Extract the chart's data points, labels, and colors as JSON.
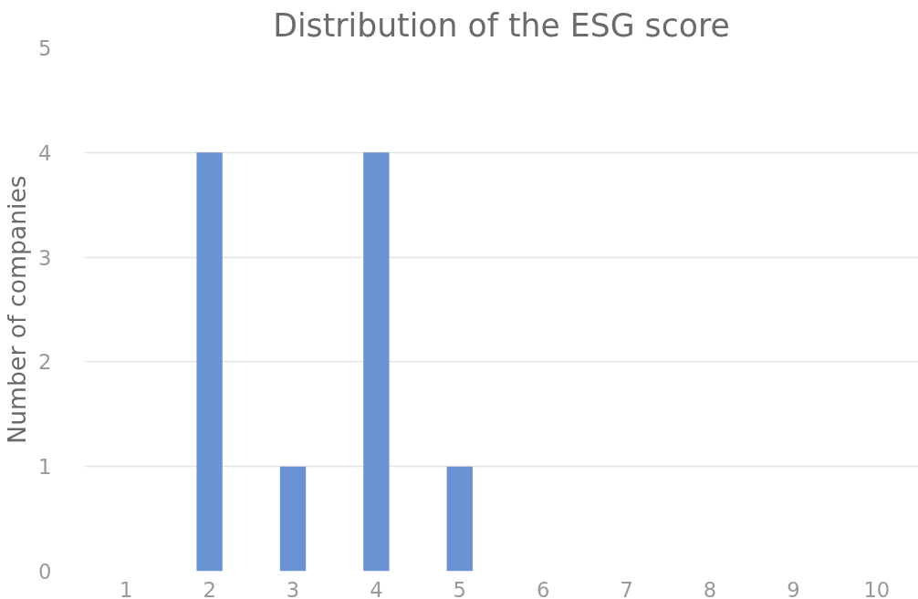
{
  "chart_data": {
    "type": "bar",
    "title": "Distribution of the ESG score",
    "ylabel": "Number of companies",
    "categories": [
      "1",
      "2",
      "3",
      "4",
      "5",
      "6",
      "7",
      "8",
      "9",
      "10"
    ],
    "values": [
      0,
      4,
      1,
      4,
      1,
      0,
      0,
      0,
      0,
      0
    ],
    "color": "#6a93d4",
    "ylim": [
      0,
      5
    ],
    "yticks": [
      0,
      1,
      2,
      3,
      4,
      5
    ],
    "grid": "y"
  }
}
